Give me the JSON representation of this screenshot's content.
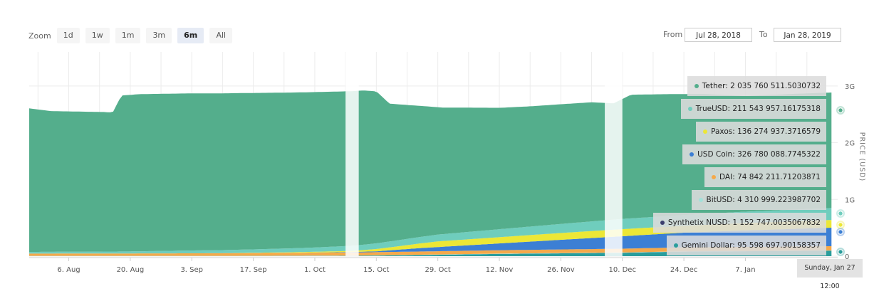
{
  "zoom": {
    "label": "Zoom",
    "buttons": [
      {
        "label": "1d",
        "active": false
      },
      {
        "label": "1w",
        "active": false
      },
      {
        "label": "1m",
        "active": false
      },
      {
        "label": "3m",
        "active": false
      },
      {
        "label": "6m",
        "active": true
      },
      {
        "label": "All",
        "active": false
      }
    ]
  },
  "range": {
    "from_label": "From",
    "from_value": "Jul 28, 2018",
    "to_label": "To",
    "to_value": "Jan 28, 2019"
  },
  "date_flag": "Sunday, Jan 27 12:00",
  "chart_data": {
    "type": "area",
    "stacked": true,
    "ylabel": "PRICE (USD)",
    "y_ticks": [
      "0",
      "1G",
      "2G",
      "3G"
    ],
    "y_tick_values": [
      0,
      1000000000,
      2000000000,
      3000000000
    ],
    "ylim": [
      0,
      3600000000
    ],
    "x_ticks": [
      "6. Aug",
      "20. Aug",
      "3. Sep",
      "17. Sep",
      "1. Oct",
      "15. Oct",
      "29. Oct",
      "12. Nov",
      "26. Nov",
      "10. Dec",
      "24. Dec",
      "7. Jan"
    ],
    "x_tick_dates": [
      "2018-08-06",
      "2018-08-20",
      "2018-09-03",
      "2018-09-17",
      "2018-10-01",
      "2018-10-15",
      "2018-10-29",
      "2018-11-12",
      "2018-11-26",
      "2018-12-10",
      "2018-12-24",
      "2019-01-07"
    ],
    "x_range": [
      "2018-07-28",
      "2019-01-28"
    ],
    "grid": true,
    "series": [
      {
        "name": "Gemini Dollar",
        "color": "#2a9d9c",
        "tooltip": "Gemini Dollar: 95 598 697.90158357",
        "points": [
          [
            "2018-07-28",
            0
          ],
          [
            "2018-09-10",
            0
          ],
          [
            "2018-10-10",
            5000000
          ],
          [
            "2018-10-25",
            20000000
          ],
          [
            "2018-11-12",
            40000000
          ],
          [
            "2018-12-10",
            60000000
          ],
          [
            "2018-12-24",
            80000000
          ],
          [
            "2019-01-27",
            95598697.9
          ]
        ]
      },
      {
        "name": "Synthetix NUSD",
        "color": "#3d3f6e",
        "tooltip": "Synthetix NUSD: 1 152 747.0035067832",
        "points": [
          [
            "2018-07-28",
            0
          ],
          [
            "2018-12-01",
            0
          ],
          [
            "2019-01-27",
            1152747.0
          ]
        ]
      },
      {
        "name": "BitUSD",
        "color": "#a3e0d9",
        "tooltip": "BitUSD: 4 310 999.223987702",
        "points": [
          [
            "2018-07-28",
            5000000
          ],
          [
            "2018-10-01",
            5000000
          ],
          [
            "2019-01-27",
            4310999.22
          ]
        ]
      },
      {
        "name": "DAI",
        "color": "#f5a94a",
        "tooltip": "DAI: 74 842 211.71203871",
        "points": [
          [
            "2018-07-28",
            40000000
          ],
          [
            "2018-09-03",
            45000000
          ],
          [
            "2018-10-10",
            55000000
          ],
          [
            "2018-11-12",
            60000000
          ],
          [
            "2018-12-24",
            70000000
          ],
          [
            "2019-01-27",
            74842211.71
          ]
        ]
      },
      {
        "name": "USD Coin",
        "color": "#3c7fd4",
        "tooltip": "USD Coin: 326 780 088.7745322",
        "points": [
          [
            "2018-07-28",
            0
          ],
          [
            "2018-09-26",
            0
          ],
          [
            "2018-10-05",
            5000000
          ],
          [
            "2018-10-15",
            15000000
          ],
          [
            "2018-10-25",
            60000000
          ],
          [
            "2018-11-12",
            120000000
          ],
          [
            "2018-11-26",
            170000000
          ],
          [
            "2018-12-10",
            220000000
          ],
          [
            "2018-12-24",
            260000000
          ],
          [
            "2019-01-07",
            290000000
          ],
          [
            "2019-01-27",
            326780088.77
          ]
        ]
      },
      {
        "name": "Paxos",
        "color": "#ece736",
        "tooltip": "Paxos: 136 274 937.3716579",
        "points": [
          [
            "2018-07-28",
            0
          ],
          [
            "2018-09-10",
            0
          ],
          [
            "2018-09-26",
            10000000
          ],
          [
            "2018-10-10",
            20000000
          ],
          [
            "2018-10-20",
            60000000
          ],
          [
            "2018-10-29",
            100000000
          ],
          [
            "2018-11-12",
            110000000
          ],
          [
            "2018-11-26",
            120000000
          ],
          [
            "2018-12-10",
            125000000
          ],
          [
            "2018-12-24",
            120000000
          ],
          [
            "2019-01-07",
            130000000
          ],
          [
            "2019-01-27",
            136274937.37
          ]
        ]
      },
      {
        "name": "TrueUSD",
        "color": "#6fcdbd",
        "tooltip": "TrueUSD: 211 543 957.16175318",
        "points": [
          [
            "2018-07-28",
            30000000
          ],
          [
            "2018-08-20",
            35000000
          ],
          [
            "2018-09-03",
            50000000
          ],
          [
            "2018-09-17",
            60000000
          ],
          [
            "2018-10-01",
            75000000
          ],
          [
            "2018-10-15",
            100000000
          ],
          [
            "2018-10-29",
            120000000
          ],
          [
            "2018-11-12",
            140000000
          ],
          [
            "2018-11-26",
            160000000
          ],
          [
            "2018-12-10",
            180000000
          ],
          [
            "2018-12-24",
            190000000
          ],
          [
            "2019-01-07",
            200000000
          ],
          [
            "2019-01-27",
            211543957.16
          ]
        ]
      },
      {
        "name": "Tether",
        "color": "#54ae8c",
        "tooltip": "Tether: 2 035 760 511.5030732",
        "points": [
          [
            "2018-07-28",
            2530000000
          ],
          [
            "2018-08-02",
            2480000000
          ],
          [
            "2018-08-08",
            2470000000
          ],
          [
            "2018-08-14",
            2460000000
          ],
          [
            "2018-08-16",
            2450000000
          ],
          [
            "2018-08-18",
            2750000000
          ],
          [
            "2018-08-22",
            2770000000
          ],
          [
            "2018-09-01",
            2770000000
          ],
          [
            "2018-09-15",
            2760000000
          ],
          [
            "2018-10-01",
            2740000000
          ],
          [
            "2018-10-12",
            2720000000
          ],
          [
            "2018-10-15",
            2680000000
          ],
          [
            "2018-10-18",
            2430000000
          ],
          [
            "2018-10-25",
            2310000000
          ],
          [
            "2018-10-30",
            2230000000
          ],
          [
            "2018-11-05",
            2190000000
          ],
          [
            "2018-11-12",
            2140000000
          ],
          [
            "2018-11-19",
            2120000000
          ],
          [
            "2018-11-26",
            2110000000
          ],
          [
            "2018-12-03",
            2100000000
          ],
          [
            "2018-12-08",
            2050000000
          ],
          [
            "2018-12-12",
            2180000000
          ],
          [
            "2018-12-20",
            2150000000
          ],
          [
            "2018-12-29",
            2110000000
          ],
          [
            "2019-01-07",
            2040000000
          ],
          [
            "2019-01-18",
            2040000000
          ],
          [
            "2019-01-27",
            2035760511.5
          ]
        ]
      }
    ],
    "gaps": [
      [
        "2018-10-08",
        "2018-10-11"
      ],
      [
        "2018-12-06",
        "2018-12-10"
      ]
    ],
    "tooltip_order": [
      "Tether",
      "TrueUSD",
      "Paxos",
      "USD Coin",
      "DAI",
      "BitUSD",
      "Synthetix NUSD",
      "Gemini Dollar"
    ]
  }
}
